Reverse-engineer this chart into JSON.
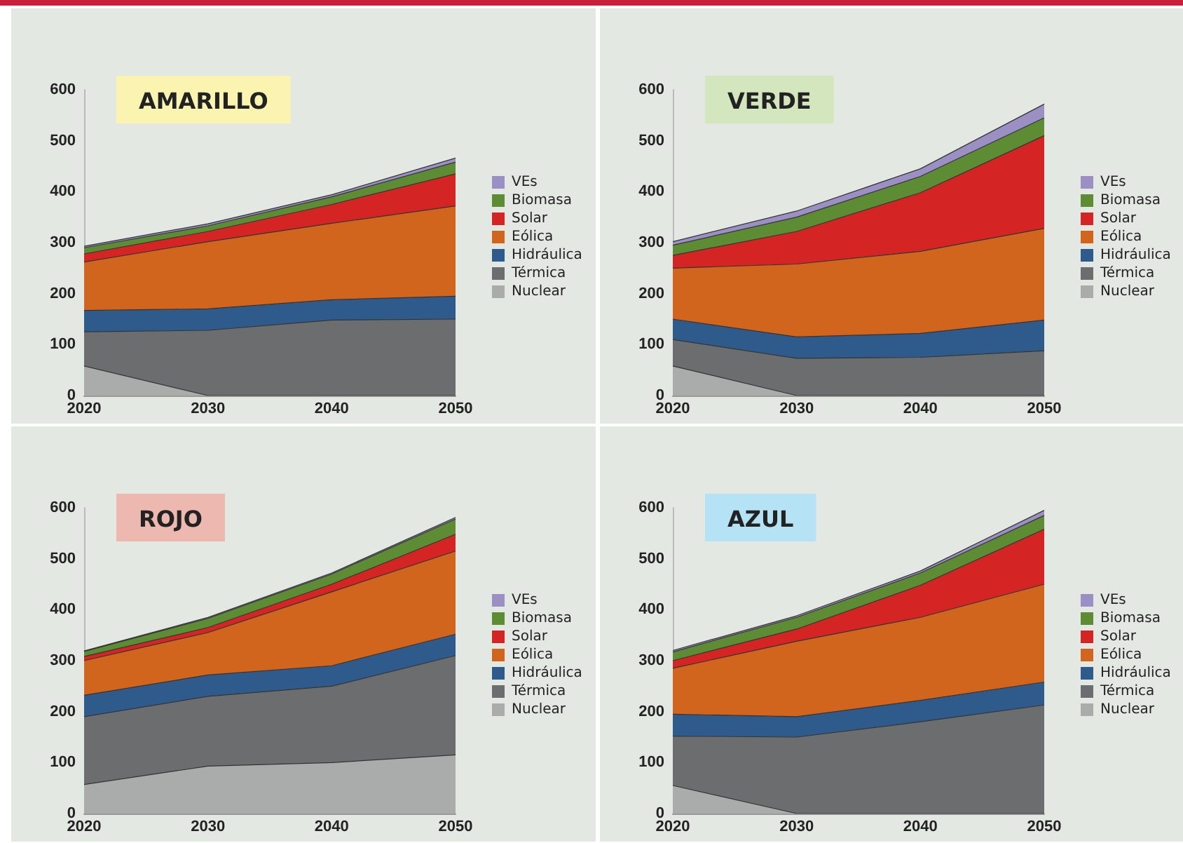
{
  "chart_data": [
    {
      "type": "area",
      "stacked": true,
      "title": "AMARILLO",
      "categories": [
        "2020",
        "2030",
        "2040",
        "2050"
      ],
      "ylim": [
        0,
        600
      ],
      "yticks": [
        0,
        100,
        200,
        300,
        400,
        500,
        600
      ],
      "grid": false,
      "legend": "right",
      "series": [
        {
          "name": "Nuclear",
          "color": "#a9acab",
          "values": [
            58,
            0,
            0,
            0
          ]
        },
        {
          "name": "Térmica",
          "color": "#6b6d6e",
          "values": [
            67,
            128,
            148,
            150
          ]
        },
        {
          "name": "Hidráulica",
          "color": "#2f5a8c",
          "values": [
            42,
            42,
            40,
            45
          ]
        },
        {
          "name": "Eólica",
          "color": "#d2651e",
          "values": [
            95,
            132,
            150,
            177
          ]
        },
        {
          "name": "Solar",
          "color": "#d42424",
          "values": [
            16,
            20,
            37,
            63
          ]
        },
        {
          "name": "Biomasa",
          "color": "#5e8c34",
          "values": [
            12,
            11,
            15,
            23
          ]
        },
        {
          "name": "VEs",
          "color": "#9b8fc4",
          "values": [
            3,
            4,
            4,
            8
          ]
        }
      ]
    },
    {
      "type": "area",
      "stacked": true,
      "title": "VERDE",
      "categories": [
        "2020",
        "2030",
        "2040",
        "2050"
      ],
      "ylim": [
        0,
        600
      ],
      "yticks": [
        0,
        100,
        200,
        300,
        400,
        500,
        600
      ],
      "grid": false,
      "legend": "right",
      "series": [
        {
          "name": "Nuclear",
          "color": "#a9acab",
          "values": [
            58,
            0,
            0,
            0
          ]
        },
        {
          "name": "Térmica",
          "color": "#6b6d6e",
          "values": [
            52,
            73,
            75,
            88
          ]
        },
        {
          "name": "Hidráulica",
          "color": "#2f5a8c",
          "values": [
            40,
            42,
            47,
            60
          ]
        },
        {
          "name": "Eólica",
          "color": "#d2651e",
          "values": [
            100,
            143,
            161,
            180
          ]
        },
        {
          "name": "Solar",
          "color": "#d42424",
          "values": [
            25,
            64,
            115,
            182
          ]
        },
        {
          "name": "Biomasa",
          "color": "#5e8c34",
          "values": [
            20,
            28,
            32,
            35
          ]
        },
        {
          "name": "VEs",
          "color": "#9b8fc4",
          "values": [
            7,
            12,
            15,
            27
          ]
        }
      ]
    },
    {
      "type": "area",
      "stacked": true,
      "title": "ROJO",
      "categories": [
        "2020",
        "2030",
        "2040",
        "2050"
      ],
      "ylim": [
        0,
        600
      ],
      "yticks": [
        0,
        100,
        200,
        300,
        400,
        500,
        600
      ],
      "grid": false,
      "legend": "right",
      "series": [
        {
          "name": "Nuclear",
          "color": "#a9acab",
          "values": [
            57,
            93,
            100,
            115
          ]
        },
        {
          "name": "Térmica",
          "color": "#6b6d6e",
          "values": [
            133,
            137,
            150,
            195
          ]
        },
        {
          "name": "Hidráulica",
          "color": "#2f5a8c",
          "values": [
            42,
            42,
            40,
            42
          ]
        },
        {
          "name": "Eólica",
          "color": "#d2651e",
          "values": [
            68,
            83,
            145,
            163
          ]
        },
        {
          "name": "Solar",
          "color": "#d42424",
          "values": [
            8,
            10,
            15,
            33
          ]
        },
        {
          "name": "Biomasa",
          "color": "#5e8c34",
          "values": [
            10,
            18,
            20,
            30
          ]
        },
        {
          "name": "VEs",
          "color": "#9b8fc4",
          "values": [
            1,
            2,
            2,
            3
          ]
        }
      ]
    },
    {
      "type": "area",
      "stacked": true,
      "title": "AZUL",
      "categories": [
        "2020",
        "2030",
        "2040",
        "2050"
      ],
      "ylim": [
        0,
        600
      ],
      "yticks": [
        0,
        100,
        200,
        300,
        400,
        500,
        600
      ],
      "grid": false,
      "legend": "right",
      "series": [
        {
          "name": "Nuclear",
          "color": "#a9acab",
          "values": [
            55,
            0,
            0,
            0
          ]
        },
        {
          "name": "Térmica",
          "color": "#6b6d6e",
          "values": [
            97,
            150,
            180,
            213
          ]
        },
        {
          "name": "Hidráulica",
          "color": "#2f5a8c",
          "values": [
            43,
            40,
            42,
            45
          ]
        },
        {
          "name": "Eólica",
          "color": "#d2651e",
          "values": [
            90,
            148,
            163,
            192
          ]
        },
        {
          "name": "Solar",
          "color": "#d42424",
          "values": [
            15,
            24,
            63,
            108
          ]
        },
        {
          "name": "Biomasa",
          "color": "#5e8c34",
          "values": [
            17,
            23,
            24,
            27
          ]
        },
        {
          "name": "VEs",
          "color": "#9b8fc4",
          "values": [
            3,
            3,
            4,
            10
          ]
        }
      ]
    }
  ]
}
